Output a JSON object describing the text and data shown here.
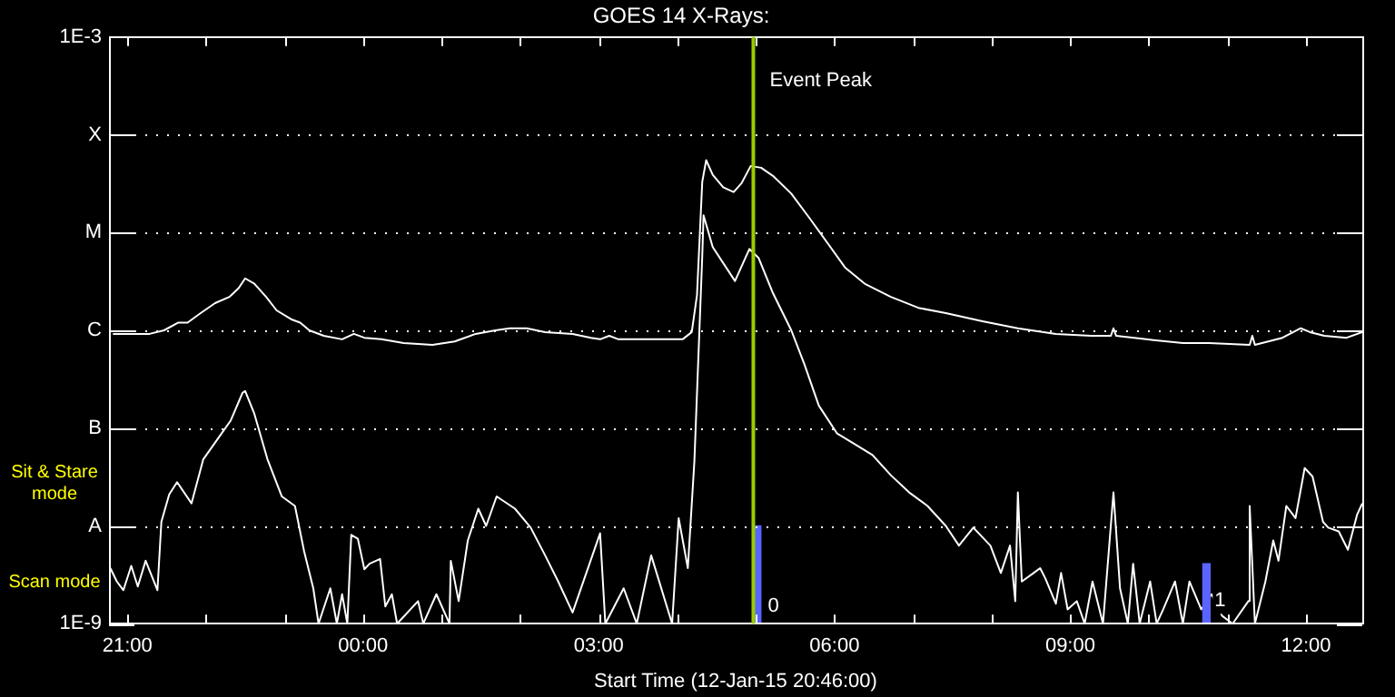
{
  "chart_data": {
    "type": "line",
    "title": "GOES 14 X-Rays:",
    "xlabel": "Start Time (12-Jan-15 20:46:00)",
    "log": true,
    "grid": "y",
    "legend": false,
    "xlim": [
      "--01-12T20:46",
      "--01-13T12:43"
    ],
    "xticks": [
      {
        "value": "--01-12T21:00",
        "label": "21:00"
      },
      {
        "value": "--01-12T22:00",
        "label": null
      },
      {
        "value": "--01-12T23:00",
        "label": null
      },
      {
        "value": "--01-13T00:00",
        "label": "00:00"
      },
      {
        "value": "--01-13T01:00",
        "label": null
      },
      {
        "value": "--01-13T02:00",
        "label": null
      },
      {
        "value": "--01-13T03:00",
        "label": "03:00"
      },
      {
        "value": "--01-13T04:00",
        "label": null
      },
      {
        "value": "--01-13T05:00",
        "label": null
      },
      {
        "value": "--01-13T06:00",
        "label": "06:00"
      },
      {
        "value": "--01-13T07:00",
        "label": null
      },
      {
        "value": "--01-13T08:00",
        "label": null
      },
      {
        "value": "--01-13T09:00",
        "label": "09:00"
      },
      {
        "value": "--01-13T10:00",
        "label": null
      },
      {
        "value": "--01-13T11:00",
        "label": null
      },
      {
        "value": "--01-13T12:00",
        "label": "12:00"
      }
    ],
    "ylim": [
      1e-09,
      0.001
    ],
    "yticks": [
      {
        "value": 1e-09,
        "label": "1E-9"
      },
      {
        "value": 1e-08,
        "label": "A"
      },
      {
        "value": 1e-07,
        "label": "B"
      },
      {
        "value": 1e-06,
        "label": "C"
      },
      {
        "value": 1e-05,
        "label": "M"
      },
      {
        "value": 0.0001,
        "label": "X"
      },
      {
        "value": 0.001,
        "label": "1E-3"
      }
    ],
    "series": [
      {
        "color": "#ffffff",
        "x": [
          "--01-12T20:49",
          "--01-12T21:03",
          "--01-12T21:17",
          "--01-12T21:28",
          "--01-12T21:39",
          "--01-12T21:46",
          "--01-12T21:56",
          "--01-12T22:07",
          "--01-12T22:18",
          "--01-12T22:25",
          "--01-12T22:30",
          "--01-12T22:37",
          "--01-12T22:46",
          "--01-12T22:54",
          "--01-12T23:05",
          "--01-12T23:12",
          "--01-12T23:19",
          "--01-12T23:30",
          "--01-12T23:44",
          "--01-12T23:53",
          "--01-13T00:01",
          "--01-13T00:14",
          "--01-13T00:31",
          "--01-13T00:53",
          "--01-13T01:10",
          "--01-13T01:26",
          "--01-13T01:41",
          "--01-13T01:52",
          "--01-13T02:05",
          "--01-13T02:19",
          "--01-13T02:40",
          "--01-13T02:54",
          "--01-13T03:01",
          "--01-13T03:08",
          "--01-13T03:15",
          "--01-13T03:29",
          "--01-13T03:50",
          "--01-13T04:04",
          "--01-13T04:11",
          "--01-13T04:15",
          "--01-13T04:19",
          "--01-13T04:22",
          "--01-13T04:27",
          "--01-13T04:35",
          "--01-13T04:43",
          "--01-13T04:49",
          "--01-13T04:56",
          "--01-13T05:04",
          "--01-13T05:13",
          "--01-13T05:27",
          "--01-13T05:41",
          "--01-13T05:55",
          "--01-13T06:08",
          "--01-13T06:23",
          "--01-13T06:43",
          "--01-13T07:04",
          "--01-13T07:25",
          "--01-13T07:53",
          "--01-13T08:20",
          "--01-13T08:49",
          "--01-13T09:16",
          "--01-13T09:31",
          "--01-13T09:33",
          "--01-13T09:35",
          "--01-13T09:58",
          "--01-13T10:26",
          "--01-13T10:46",
          "--01-13T11:17",
          "--01-13T11:19",
          "--01-13T11:21",
          "--01-13T11:42",
          "--01-13T11:56",
          "--01-13T12:03",
          "--01-13T12:14",
          "--01-13T12:31",
          "--01-13T12:43"
        ],
        "values": [
          9.2e-07,
          9.2e-07,
          9.2e-07,
          1e-06,
          1.2e-06,
          1.2e-06,
          1.5e-06,
          1.9e-06,
          2.2e-06,
          2.7e-06,
          3.4e-06,
          3e-06,
          2.2e-06,
          1.6e-06,
          1.3e-06,
          1.2e-06,
          1e-06,
          8.8e-07,
          8.1e-07,
          9.2e-07,
          8.4e-07,
          8.1e-07,
          7.4e-07,
          7.1e-07,
          7.7e-07,
          9.2e-07,
          1e-06,
          1.05e-06,
          1.05e-06,
          9.6e-07,
          9.2e-07,
          8.4e-07,
          8.1e-07,
          8.8e-07,
          8.1e-07,
          8.1e-07,
          8.1e-07,
          8.1e-07,
          9.6e-07,
          2.3e-06,
          3.3e-05,
          5.5e-05,
          3.9e-05,
          2.9e-05,
          2.6e-05,
          3.2e-05,
          4.8e-05,
          4.6e-05,
          3.8e-05,
          2.5e-05,
          1.4e-05,
          7.7e-06,
          4.4e-06,
          3e-06,
          2.2e-06,
          1.7e-06,
          1.5e-06,
          1.24e-06,
          1.05e-06,
          9.2e-07,
          8.8e-07,
          8.8e-07,
          1.05e-06,
          8.8e-07,
          8.1e-07,
          7.4e-07,
          7.4e-07,
          7.1e-07,
          8.8e-07,
          7.1e-07,
          8.4e-07,
          1.05e-06,
          9.6e-07,
          8.8e-07,
          8.4e-07,
          9.6e-07
        ]
      },
      {
        "color": "#ffffff",
        "x": [
          "--01-12T20:47",
          "--01-12T20:52",
          "--01-12T20:57",
          "--01-12T21:03",
          "--01-12T21:08",
          "--01-12T21:14",
          "--01-12T21:19",
          "--01-12T21:23",
          "--01-12T21:26",
          "--01-12T21:32",
          "--01-12T21:38",
          "--01-12T21:49",
          "--01-12T21:58",
          "--01-12T22:10",
          "--01-12T22:19",
          "--01-12T22:28",
          "--01-12T22:30",
          "--01-12T22:37",
          "--01-12T22:47",
          "--01-12T22:58",
          "--01-12T23:08",
          "--01-12T23:15",
          "--01-12T23:22",
          "--01-12T23:26",
          "--01-12T23:35",
          "--01-12T23:40",
          "--01-12T23:44",
          "--01-12T23:48",
          "--01-12T23:51",
          "--01-12T23:56",
          "--01-13T00:01",
          "--01-13T00:05",
          "--01-13T00:13",
          "--01-13T00:17",
          "--01-13T00:22",
          "--01-13T00:26",
          "--01-13T00:42",
          "--01-13T00:46",
          "--01-13T00:56",
          "--01-13T01:06",
          "--01-13T01:07",
          "--01-13T01:13",
          "--01-13T01:20",
          "--01-13T01:28",
          "--01-13T01:34",
          "--01-13T01:42",
          "--01-13T01:56",
          "--01-13T02:08",
          "--01-13T02:19",
          "--01-13T02:29",
          "--01-13T02:40",
          "--01-13T03:01",
          "--01-13T03:05",
          "--01-13T03:19",
          "--01-13T03:29",
          "--01-13T03:40",
          "--01-13T03:56",
          "--01-13T04:01",
          "--01-13T04:08",
          "--01-13T04:13",
          "--01-13T04:19",
          "--01-13T04:20",
          "--01-13T04:27",
          "--01-13T04:44",
          "--01-13T04:55",
          "--01-13T05:02",
          "--01-13T05:13",
          "--01-13T05:27",
          "--01-13T05:37",
          "--01-13T05:48",
          "--01-13T06:02",
          "--01-13T06:16",
          "--01-13T06:29",
          "--01-13T06:43",
          "--01-13T06:57",
          "--01-13T07:11",
          "--01-13T07:25",
          "--01-13T07:35",
          "--01-13T07:46",
          "--01-13T07:59",
          "--01-13T08:07",
          "--01-13T08:14",
          "--01-13T08:18",
          "--01-13T08:20",
          "--01-13T08:23",
          "--01-13T08:32",
          "--01-13T08:37",
          "--01-13T08:41",
          "--01-13T08:49",
          "--01-13T08:53",
          "--01-13T08:58",
          "--01-13T09:05",
          "--01-13T09:11",
          "--01-13T09:17",
          "--01-13T09:25",
          "--01-13T09:33",
          "--01-13T09:38",
          "--01-13T09:44",
          "--01-13T09:48",
          "--01-13T09:53",
          "--01-13T10:01",
          "--01-13T10:06",
          "--01-13T10:11",
          "--01-13T10:20",
          "--01-13T10:26",
          "--01-13T10:31",
          "--01-13T10:40",
          "--01-13T10:48",
          "--01-13T10:56",
          "--01-13T11:04",
          "--01-13T11:16",
          "--01-13T11:17",
          "--01-13T11:21",
          "--01-13T11:29",
          "--01-13T11:35",
          "--01-13T11:39",
          "--01-13T11:45",
          "--01-13T11:52",
          "--01-13T11:59",
          "--01-13T12:05",
          "--01-13T12:13",
          "--01-13T12:17",
          "--01-13T12:25",
          "--01-13T12:32",
          "--01-13T12:39",
          "--01-13T12:43"
        ],
        "values": [
          3.7e-09,
          2.7e-09,
          2.2e-09,
          3.9e-09,
          2.4e-09,
          4.4e-09,
          3e-09,
          2.2e-09,
          1.1e-08,
          2.1e-08,
          2.8e-08,
          1.7e-08,
          4.8e-08,
          8.1e-08,
          1.2e-07,
          2.3e-07,
          2.4e-07,
          1.4e-07,
          4.8e-08,
          2e-08,
          1.6e-08,
          5.5e-09,
          2.3e-09,
          1e-09,
          2.3e-09,
          1e-09,
          2e-09,
          1e-09,
          8.1e-09,
          7.4e-09,
          3.6e-09,
          4.1e-09,
          4.6e-09,
          1.5e-09,
          2e-09,
          1e-09,
          1.7e-09,
          1e-09,
          2e-09,
          1e-09,
          4.4e-09,
          1.7e-09,
          7.1e-09,
          1.5e-08,
          1e-08,
          2e-08,
          1.5e-08,
          9.6e-09,
          5e-09,
          2.7e-09,
          1.3e-09,
          8.4e-09,
          1e-09,
          2.3e-09,
          1e-09,
          5e-09,
          1e-09,
          1.2e-08,
          3.7e-09,
          4.6e-08,
          5.7e-06,
          1.5e-05,
          7.1e-06,
          3.2e-06,
          6.8e-06,
          5.5e-06,
          2.4e-06,
          1e-06,
          4.5e-07,
          1.7e-07,
          8.8e-08,
          6.8e-08,
          5.3e-08,
          3.3e-08,
          2.2e-08,
          1.6e-08,
          1e-08,
          6.3e-09,
          9.6e-09,
          6.3e-09,
          3.3e-09,
          6.3e-09,
          1.7e-09,
          2.2e-08,
          2.7e-09,
          3.3e-09,
          3.7e-09,
          2.9e-09,
          1.6e-09,
          3.3e-09,
          1.4e-09,
          1.7e-09,
          1e-09,
          2.7e-09,
          1e-09,
          2.2e-08,
          2.3e-09,
          1e-09,
          4.1e-09,
          1e-09,
          2.7e-09,
          1e-09,
          1.4e-09,
          2.7e-09,
          1e-09,
          2.7e-09,
          1.4e-09,
          2e-09,
          1.2e-09,
          1e-09,
          1.7e-09,
          1.6e-08,
          1e-09,
          2.7e-09,
          7.1e-09,
          4.4e-09,
          1.6e-08,
          1.2e-08,
          3.9e-08,
          3.2e-08,
          1.1e-08,
          9.6e-09,
          8.8e-09,
          5.7e-09,
          1.3e-08,
          1.7e-08
        ]
      },
      {
        "type": "bar",
        "color": "#5a64ff",
        "x": [
          "--01-13T05:01",
          "--01-13T10:44"
        ],
        "values": [
          1e-08,
          4.1e-09
        ]
      }
    ],
    "ref_lines": [
      {
        "axis": "x",
        "value": "--01-13T04:58",
        "label": "Event Peak",
        "color": "#99cc00"
      }
    ],
    "annotations": [
      "Sit & Stare mode",
      "Scan mode",
      {
        "text": "0",
        "x": "--01-13T05:05",
        "y": 1.5e-09
      },
      {
        "text": "1",
        "x": "--01-13T10:46",
        "y": 1.7e-09
      }
    ]
  }
}
